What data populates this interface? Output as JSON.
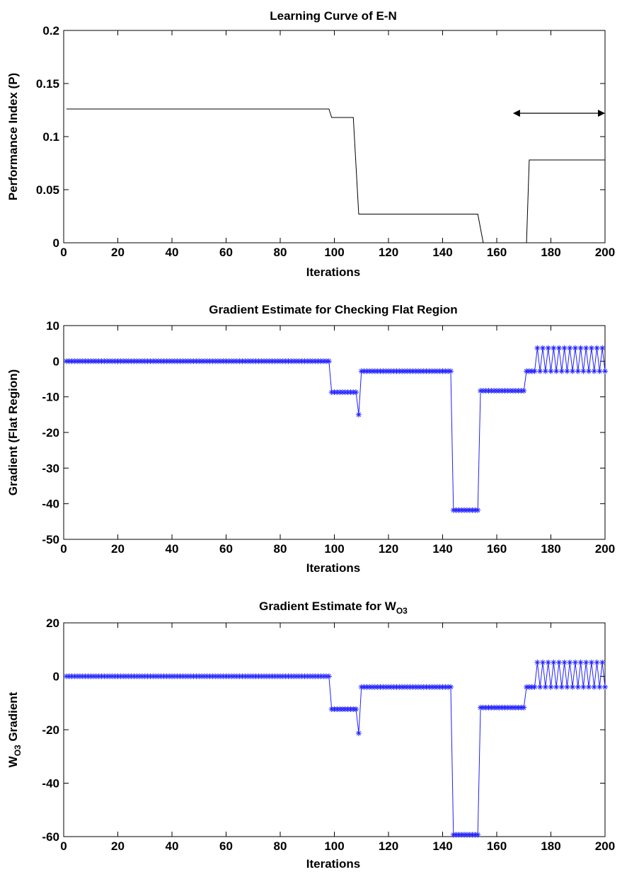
{
  "chart_data": [
    {
      "type": "line",
      "title": "Learning Curve of E-N",
      "xlabel": "Iterations",
      "ylabel": "Performance Index (P)",
      "xlim": [
        0,
        200
      ],
      "ylim": [
        0,
        0.2
      ],
      "xticks": [
        0,
        20,
        40,
        60,
        80,
        100,
        120,
        140,
        160,
        180,
        200
      ],
      "yticks": [
        0,
        0.05,
        0.1,
        0.15,
        0.2
      ],
      "ytick_labels": [
        "0",
        "0.05",
        "0.1",
        "0.15",
        "0.2"
      ],
      "grid": false,
      "series": [
        {
          "color": "#000000",
          "marker": "none",
          "x": [
            1,
            98,
            99,
            107,
            109,
            153,
            155,
            171,
            172,
            200
          ],
          "y": [
            0.126,
            0.126,
            0.118,
            0.118,
            0.027,
            0.027,
            0.0,
            0.0,
            0.078,
            0.078
          ]
        }
      ],
      "annotations": [
        {
          "type": "double-arrow",
          "x": [
            172,
            200
          ],
          "y": 0.122
        }
      ]
    },
    {
      "type": "line",
      "title": "Gradient Estimate for Checking Flat Region",
      "xlabel": "Iterations",
      "ylabel": "Gradient (Flat Region)",
      "xlim": [
        0,
        200
      ],
      "ylim": [
        -50,
        10
      ],
      "xticks": [
        0,
        20,
        40,
        60,
        80,
        100,
        120,
        140,
        160,
        180,
        200
      ],
      "yticks": [
        -50,
        -40,
        -30,
        -20,
        -10,
        0,
        10
      ],
      "ytick_labels": [
        "-50",
        "-40",
        "-30",
        "-20",
        "-10",
        "0",
        "10"
      ],
      "grid": false,
      "series": [
        {
          "color": "#1f1fff",
          "marker": "*",
          "segments": [
            {
              "from": 1,
              "to": 98,
              "value": 0
            },
            {
              "from": 99,
              "to": 108,
              "value": -8.7
            },
            {
              "from": 109,
              "to": 109,
              "value": -15
            },
            {
              "from": 110,
              "to": 143,
              "value": -2.8
            },
            {
              "from": 144,
              "to": 153,
              "value": -41.8
            },
            {
              "from": 154,
              "to": 170,
              "value": -8.3
            },
            {
              "from": 171,
              "to": 174,
              "value": -2.8
            }
          ],
          "oscillation": {
            "from": 175,
            "to": 200,
            "high": 3.7,
            "low": -2.8
          }
        }
      ]
    },
    {
      "type": "line",
      "title": "Gradient Estimate for W",
      "title_subscript": "O3",
      "xlabel": "Iterations",
      "ylabel": "W",
      "ylabel_subscript": "O3",
      "ylabel_suffix": " Gradient",
      "xlim": [
        0,
        200
      ],
      "ylim": [
        -60,
        20
      ],
      "xticks": [
        0,
        20,
        40,
        60,
        80,
        100,
        120,
        140,
        160,
        180,
        200
      ],
      "yticks": [
        -60,
        -40,
        -20,
        0,
        20
      ],
      "ytick_labels": [
        "-60",
        "-40",
        "-20",
        "0",
        "20"
      ],
      "grid": false,
      "series": [
        {
          "color": "#1f1fff",
          "marker": "*",
          "segments": [
            {
              "from": 1,
              "to": 98,
              "value": 0
            },
            {
              "from": 99,
              "to": 108,
              "value": -12.3
            },
            {
              "from": 109,
              "to": 109,
              "value": -21.3
            },
            {
              "from": 110,
              "to": 143,
              "value": -4
            },
            {
              "from": 144,
              "to": 153,
              "value": -59.3
            },
            {
              "from": 154,
              "to": 170,
              "value": -11.7
            },
            {
              "from": 171,
              "to": 174,
              "value": -4
            }
          ],
          "oscillation": {
            "from": 175,
            "to": 200,
            "high": 5.2,
            "low": -4
          }
        }
      ]
    }
  ]
}
